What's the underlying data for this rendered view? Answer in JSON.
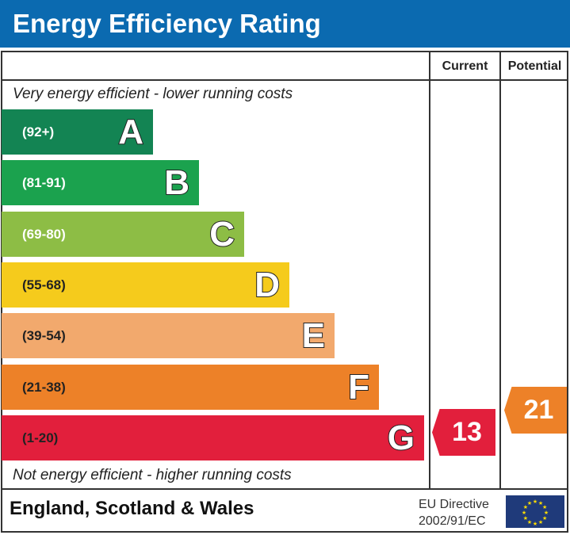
{
  "title": "Energy Efficiency Rating",
  "columns": {
    "current": "Current",
    "potential": "Potential"
  },
  "top_note": "Very energy efficient - lower running costs",
  "bottom_note": "Not energy efficient - higher running costs",
  "footer": {
    "region": "England, Scotland & Wales",
    "directive_line1": "EU Directive",
    "directive_line2": "2002/91/EC",
    "flag_icon": "eu-flag-icon"
  },
  "chart_data": {
    "type": "bar",
    "categories": [
      "A",
      "B",
      "C",
      "D",
      "E",
      "F",
      "G"
    ],
    "ranges": [
      "(92+)",
      "(81-91)",
      "(69-80)",
      "(55-68)",
      "(39-54)",
      "(21-38)",
      "(1-20)"
    ],
    "colors": [
      "#138453",
      "#1ba24e",
      "#8dbd45",
      "#f5cb1c",
      "#f2a96d",
      "#ed8128",
      "#e21f3c"
    ],
    "current": {
      "value": 13,
      "band": "G",
      "color": "#e21f3c"
    },
    "potential": {
      "value": 21,
      "band": "F",
      "color": "#ed8128"
    }
  }
}
